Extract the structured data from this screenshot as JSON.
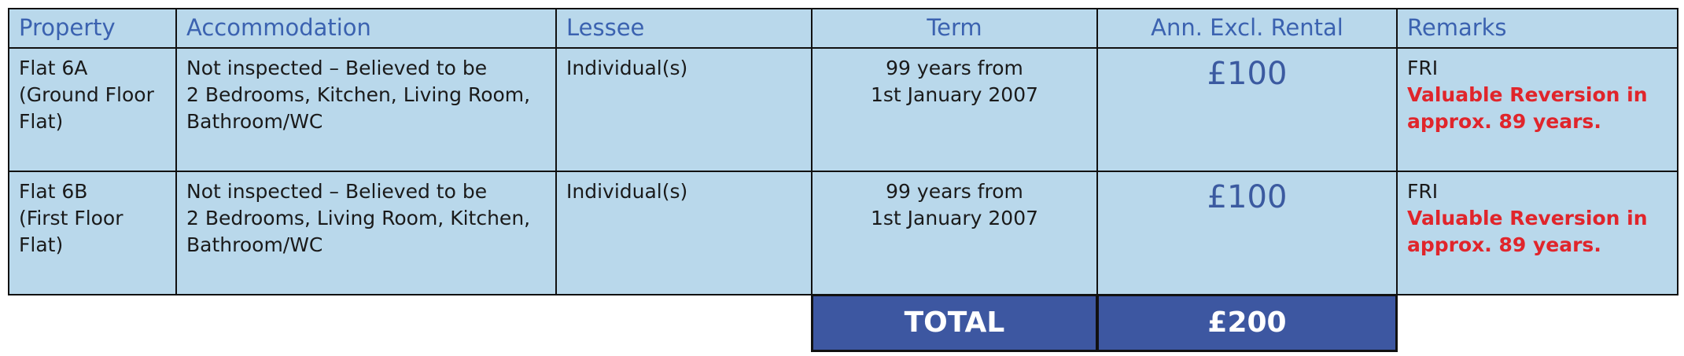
{
  "table": {
    "header": [
      "Property",
      "Accommodation",
      "Lessee",
      "Term",
      "Ann. Excl. Rental",
      "Remarks"
    ],
    "rows": [
      {
        "property": [
          "Flat 6A",
          "(Ground Floor",
          "Flat)"
        ],
        "accommodation": [
          "Not inspected – Believed to be",
          "2 Bedrooms, Kitchen, Living Room,",
          "Bathroom/WC"
        ],
        "lessee": "Individual(s)",
        "term": [
          "99 years from",
          "1st January 2007"
        ],
        "rental": "£100",
        "remarks": {
          "covenant": "FRI",
          "note": [
            "Valuable Reversion in",
            "approx. 89 years."
          ]
        }
      },
      {
        "property": [
          "Flat 6B",
          "(First Floor",
          "Flat)"
        ],
        "accommodation": [
          "Not inspected – Believed to be",
          "2 Bedrooms, Living Room, Kitchen,",
          "Bathroom/WC"
        ],
        "lessee": "Individual(s)",
        "term": [
          "99 years from",
          "1st January 2007"
        ],
        "rental": "£100",
        "remarks": {
          "covenant": "FRI",
          "note": [
            "Valuable Reversion in",
            "approx. 89 years."
          ]
        }
      }
    ],
    "total": {
      "label": "TOTAL",
      "value": "£200"
    }
  }
}
